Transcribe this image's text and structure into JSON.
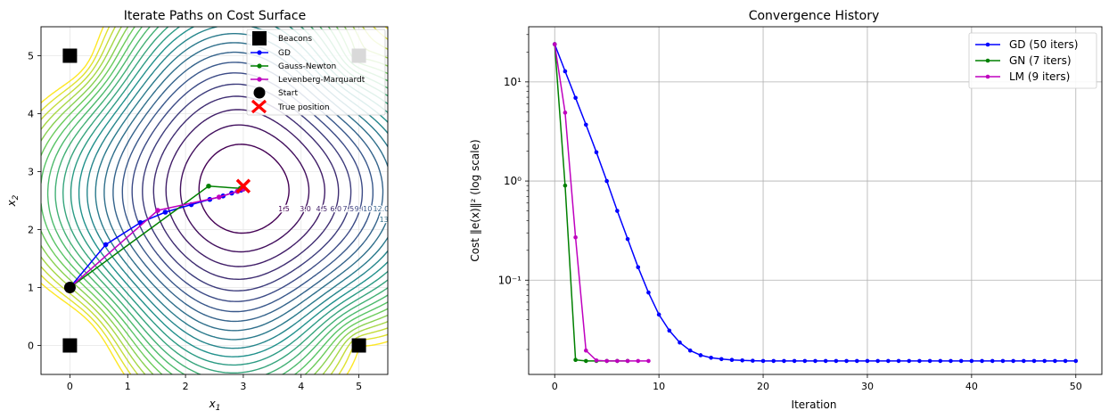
{
  "chart_data": [
    {
      "type": "contour",
      "title": "Iterate Paths on Cost Surface",
      "xlabel": "x",
      "xlabel_sub": "1",
      "ylabel": "x",
      "ylabel_sub": "2",
      "xlim": [
        -0.5,
        5.5
      ],
      "ylim": [
        -0.5,
        5.5
      ],
      "xticks": [
        0,
        1,
        2,
        3,
        4,
        5
      ],
      "yticks": [
        0,
        1,
        2,
        3,
        4,
        5
      ],
      "grid": true,
      "legend_position": "upper right",
      "beacons": [
        [
          0,
          5
        ],
        [
          5,
          5
        ],
        [
          0,
          0
        ],
        [
          5,
          0
        ]
      ],
      "start": [
        0,
        1
      ],
      "true_position": [
        3,
        2.75
      ],
      "series": [
        {
          "name": "GD",
          "color": "#0000ff",
          "points": [
            [
              0,
              1
            ],
            [
              0.62,
              1.74
            ],
            [
              1.22,
              2.12
            ],
            [
              1.65,
              2.3
            ],
            [
              2.1,
              2.43
            ],
            [
              2.42,
              2.52
            ],
            [
              2.65,
              2.58
            ],
            [
              2.8,
              2.63
            ],
            [
              2.9,
              2.66
            ],
            [
              2.96,
              2.68
            ],
            [
              3.0,
              2.7
            ]
          ]
        },
        {
          "name": "Gauss-Newton",
          "color": "#008000",
          "points": [
            [
              0,
              1
            ],
            [
              2.4,
              2.75
            ],
            [
              2.95,
              2.71
            ],
            [
              3.0,
              2.7
            ]
          ]
        },
        {
          "name": "Levenberg-Marquardt",
          "color": "#bf00bf",
          "points": [
            [
              0,
              1
            ],
            [
              1.52,
              2.33
            ],
            [
              2.58,
              2.56
            ],
            [
              2.9,
              2.66
            ],
            [
              2.98,
              2.7
            ],
            [
              3.0,
              2.7
            ]
          ]
        }
      ],
      "contour_levels": [
        1.5,
        3.0,
        4.5,
        6.0,
        7.5,
        9.0,
        10.5,
        12.0,
        13.5,
        15.0,
        16.5,
        18.0,
        19.5,
        21.0,
        22.5,
        24.0,
        25.5,
        27.0,
        28.5,
        30.0,
        31.5,
        33.0,
        34.5
      ],
      "legend": [
        "Beacons",
        "GD",
        "Gauss-Newton",
        "Levenberg-Marquardt",
        "Start",
        "True position"
      ]
    },
    {
      "type": "line",
      "title": "Convergence History",
      "xlabel": "Iteration",
      "ylabel": "Cost ‖e(x)‖² (log scale)",
      "yscale": "log",
      "xlim": [
        -2.5,
        52.5
      ],
      "ylim": [
        0.0112,
        36
      ],
      "xticks": [
        0,
        10,
        20,
        30,
        40,
        50
      ],
      "yticks": [
        0.1,
        1,
        10
      ],
      "ytick_labels": [
        "10⁻¹",
        "10⁰",
        "10¹"
      ],
      "grid": true,
      "legend_position": "upper right",
      "series": [
        {
          "name": "GD (50 iters)",
          "color": "#0000ff",
          "values": [
            24,
            12.8,
            6.9,
            3.7,
            1.95,
            1.0,
            0.5,
            0.26,
            0.135,
            0.075,
            0.045,
            0.031,
            0.0235,
            0.0195,
            0.0175,
            0.0165,
            0.016,
            0.0157,
            0.0155,
            0.0154,
            0.0153,
            0.0153,
            0.0153,
            0.0153,
            0.0153,
            0.0153,
            0.0153,
            0.0153,
            0.0153,
            0.0153,
            0.0153,
            0.0153,
            0.0153,
            0.0153,
            0.0153,
            0.0153,
            0.0153,
            0.0153,
            0.0153,
            0.0153,
            0.0153,
            0.0153,
            0.0153,
            0.0153,
            0.0153,
            0.0153,
            0.0153,
            0.0153,
            0.0153,
            0.0153,
            0.0153
          ]
        },
        {
          "name": "GN (7 iters)",
          "color": "#008000",
          "values": [
            24,
            0.9,
            0.0157,
            0.0153,
            0.0153,
            0.0153,
            0.0153,
            0.0153
          ]
        },
        {
          "name": "LM (9 iters)",
          "color": "#bf00bf",
          "values": [
            24,
            4.9,
            0.27,
            0.0195,
            0.0155,
            0.0153,
            0.0153,
            0.0153,
            0.0153,
            0.0153
          ]
        }
      ]
    }
  ]
}
